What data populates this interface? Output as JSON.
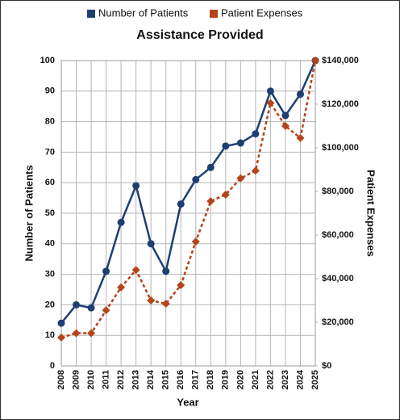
{
  "chart_data": {
    "type": "line",
    "title": "Assistance Provided",
    "xlabel": "Year",
    "ylabel": "Number of Patients",
    "y2label": "Patient Expenses",
    "categories": [
      "2008",
      "2009",
      "2010",
      "2011",
      "2012",
      "2013",
      "2014",
      "2015",
      "2016",
      "2017",
      "2018",
      "2019",
      "2020",
      "2021",
      "2022",
      "2023",
      "2024",
      "2025"
    ],
    "series": [
      {
        "name": "Number of Patients",
        "color": "#1f3f73",
        "marker": "circle",
        "dashed": false,
        "values": [
          14,
          20,
          19,
          31,
          47,
          59,
          40,
          31,
          53,
          61,
          65,
          72,
          73,
          76,
          90,
          82,
          89,
          100
        ]
      },
      {
        "name": "Patient Expenses",
        "color": "#b5441a",
        "marker": "diamond",
        "dashed": true,
        "axis": "y2",
        "values": [
          13000,
          15000,
          15000,
          25500,
          36000,
          44000,
          30000,
          28500,
          37000,
          57000,
          75500,
          78500,
          86000,
          89500,
          120500,
          110000,
          104500,
          140000
        ]
      }
    ],
    "ylim": [
      0,
      100
    ],
    "yticks": [
      0,
      10,
      20,
      30,
      40,
      50,
      60,
      70,
      80,
      90,
      100
    ],
    "y2lim": [
      0,
      140000
    ],
    "y2ticks": [
      {
        "value": 0,
        "label": "$0"
      },
      {
        "value": 20000,
        "label": "$20,000"
      },
      {
        "value": 40000,
        "label": "$40,000"
      },
      {
        "value": 60000,
        "label": "$60,000"
      },
      {
        "value": 80000,
        "label": "$80,000"
      },
      {
        "value": 100000,
        "label": "$100,000"
      },
      {
        "value": 120000,
        "label": "$120,000"
      },
      {
        "value": 140000,
        "label": "$140,000"
      }
    ],
    "grid": true,
    "legend": "top"
  }
}
